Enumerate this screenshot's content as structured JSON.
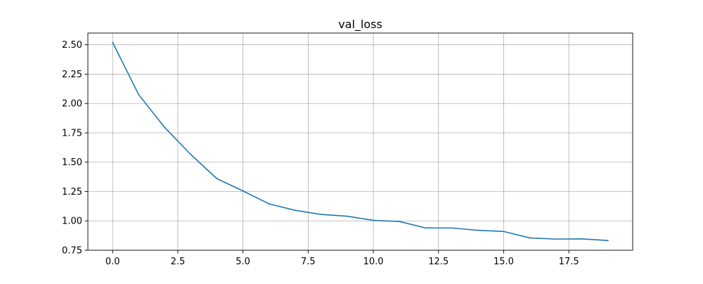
{
  "chart_data": {
    "type": "line",
    "title": "val_loss",
    "xlabel": "",
    "ylabel": "",
    "grid": true,
    "xlim": [
      -0.95,
      19.95
    ],
    "ylim": [
      0.75,
      2.6
    ],
    "xticks": [
      0.0,
      2.5,
      5.0,
      7.5,
      10.0,
      12.5,
      15.0,
      17.5
    ],
    "xtick_labels": [
      "0.0",
      "2.5",
      "5.0",
      "7.5",
      "10.0",
      "12.5",
      "15.0",
      "17.5"
    ],
    "yticks": [
      0.75,
      1.0,
      1.25,
      1.5,
      1.75,
      2.0,
      2.25,
      2.5
    ],
    "ytick_labels": [
      "0.75",
      "1.00",
      "1.25",
      "1.50",
      "1.75",
      "2.00",
      "2.25",
      "2.50"
    ],
    "series": [
      {
        "color": "#1f77b4",
        "x": [
          0,
          1,
          2,
          3,
          4,
          5,
          6,
          7,
          8,
          9,
          10,
          11,
          12,
          13,
          14,
          15,
          16,
          17,
          18,
          19
        ],
        "values": [
          2.52,
          2.075,
          1.795,
          1.565,
          1.36,
          1.255,
          1.145,
          1.09,
          1.055,
          1.04,
          1.005,
          0.995,
          0.94,
          0.94,
          0.92,
          0.91,
          0.855,
          0.845,
          0.847,
          0.833
        ]
      }
    ]
  }
}
